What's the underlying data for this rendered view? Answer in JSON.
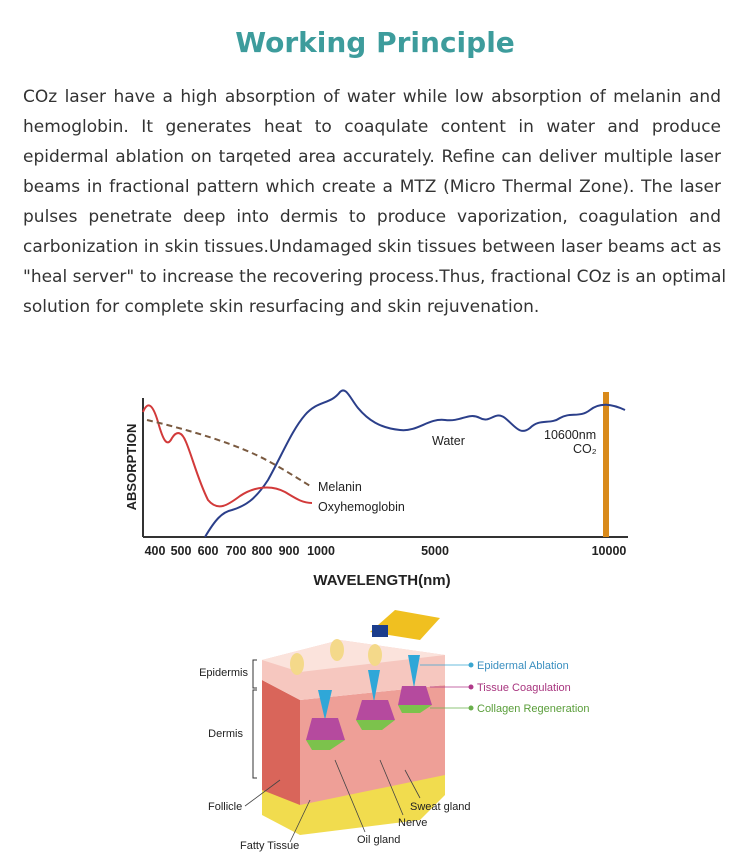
{
  "header": {
    "title": "Working Principle"
  },
  "paragraph_lines": [
    "COz laser have a high absorption of water while low absorption of melanin and",
    "hemoglobin. It generates heat to coaqulate content in water and produce",
    "epidermal ablation on tarqeted area accurately. Refine can deliver multiple laser",
    "beams in fractional pattern which create a MTZ (Micro Thermal Zone). The laser",
    "pulses penetrate deep into dermis to produce vaporization, coagulation and",
    "carbonization in skin tissues.Undamaged skin tissues between laser beams act as",
    "\"heal server\" to increase the recovering process.Thus, fractional COz is an optimal",
    "solution for complete skin resurfacing and skin rejuvenation."
  ],
  "absorption_figure": {
    "y_label": "ABSORPTION",
    "x_label": "WAVELENGTH(nm)",
    "x_tick_labels": [
      "400",
      "500",
      "600",
      "700",
      "800",
      "900",
      "1000",
      "5000",
      "10000"
    ],
    "curve_labels": {
      "water": "Water",
      "melanin": "Melanin",
      "oxyhemoglobin": "Oxyhemoglobin"
    },
    "laser_labels": [
      "10600nm",
      "CO₂"
    ]
  },
  "skin_figure": {
    "left_labels": [
      "Epidermis",
      "Dermis"
    ],
    "bottom_labels": [
      "Follicle",
      "Fatty Tissue",
      "Oil gland",
      "Nerve",
      "Sweat gland"
    ],
    "legend": [
      "Epidermal Ablation",
      "Tissue Coagulation",
      "Collagen Regeneration"
    ]
  }
}
